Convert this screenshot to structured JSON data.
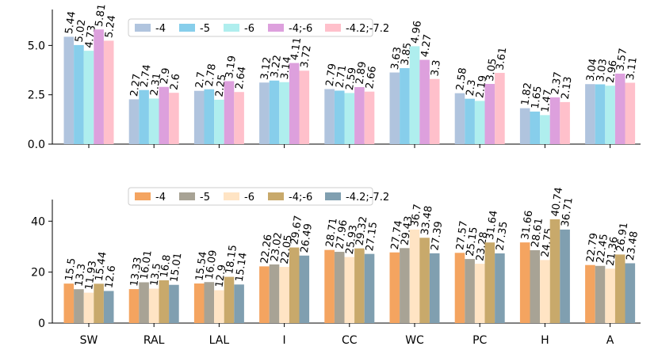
{
  "chart_data": [
    {
      "type": "bar",
      "categories": [
        "SW",
        "RAL",
        "LAL",
        "I",
        "CC",
        "WC",
        "PC",
        "H",
        "A"
      ],
      "ylim": [
        0,
        6.5
      ],
      "yticks": [
        "0.0",
        "2.5",
        "5.0"
      ],
      "ytick_values": [
        0,
        2.5,
        5.0
      ],
      "series": [
        {
          "name": "-4",
          "color": "#b0c4de",
          "values": [
            5.44,
            2.27,
            2.7,
            3.12,
            2.79,
            3.63,
            2.58,
            1.82,
            3.04
          ],
          "labels": [
            "5.44",
            "2.27",
            "2.7",
            "3.12",
            "2.79",
            "3.63",
            "2.58",
            "1.82",
            "3.04"
          ]
        },
        {
          "name": "-5",
          "color": "#87ceeb",
          "values": [
            5.02,
            2.74,
            2.78,
            3.22,
            2.71,
            3.85,
            2.3,
            1.65,
            3.03
          ],
          "labels": [
            "5.02",
            "2.74",
            "2.78",
            "3.22",
            "2.71",
            "3.85",
            "2.3",
            "1.65",
            "3.03"
          ]
        },
        {
          "name": "-6",
          "color": "#afeeee",
          "values": [
            4.73,
            2.31,
            2.25,
            3.14,
            2.59,
            4.96,
            2.19,
            1.47,
            2.96
          ],
          "labels": [
            "4.73",
            "2.31",
            "2.25",
            "3.14",
            "2.59",
            "4.96",
            "2.19",
            "1.47",
            "2.96"
          ]
        },
        {
          "name": "-4;-6",
          "color": "#dda0dd",
          "values": [
            5.81,
            2.9,
            3.19,
            4.11,
            2.89,
            4.27,
            3.05,
            2.37,
            3.57
          ],
          "labels": [
            "5.81",
            "2.9",
            "3.19",
            "4.11",
            "2.89",
            "4.27",
            "3.05",
            "2.37",
            "3.57"
          ]
        },
        {
          "name": "-4.2;-7.2",
          "color": "#ffc0cb",
          "values": [
            5.24,
            2.6,
            2.64,
            3.72,
            2.66,
            3.3,
            3.61,
            2.13,
            3.11
          ],
          "labels": [
            "5.24",
            "2.6",
            "2.64",
            "3.72",
            "2.66",
            "3.3",
            "3.61",
            "2.13",
            "3.11"
          ]
        }
      ],
      "legend_position": "top-center"
    },
    {
      "type": "bar",
      "categories": [
        "SW",
        "RAL",
        "LAL",
        "I",
        "CC",
        "WC",
        "PC",
        "H",
        "A"
      ],
      "ylim": [
        0,
        46
      ],
      "yticks": [
        "0",
        "20",
        "40"
      ],
      "ytick_values": [
        0,
        20,
        40
      ],
      "series": [
        {
          "name": "-4",
          "color": "#f4a460",
          "values": [
            15.5,
            13.33,
            15.54,
            22.26,
            28.71,
            27.74,
            27.57,
            31.66,
            22.79
          ],
          "labels": [
            "15.5",
            "13.33",
            "15.54",
            "22.26",
            "28.71",
            "27.74",
            "27.57",
            "31.66",
            "22.79"
          ]
        },
        {
          "name": "-5",
          "color": "#a8a395",
          "values": [
            13.3,
            16.01,
            16.09,
            23.02,
            27.96,
            29.43,
            25.15,
            28.61,
            22.45
          ],
          "labels": [
            "13.3",
            "16.01",
            "16.09",
            "23.02",
            "27.96",
            "29.43",
            "25.15",
            "28.61",
            "22.45"
          ]
        },
        {
          "name": "-6",
          "color": "#ffe4c4",
          "values": [
            11.93,
            13.5,
            12.9,
            22.05,
            25.93,
            36.7,
            23.28,
            24.75,
            21.36
          ],
          "labels": [
            "11.93",
            "13.5",
            "12.9",
            "22.05",
            "25.93",
            "36.7",
            "23.28",
            "24.75",
            "21.36"
          ]
        },
        {
          "name": "-4;-6",
          "color": "#c8a96b",
          "values": [
            15.44,
            16.8,
            18.15,
            29.67,
            29.32,
            33.48,
            31.64,
            40.74,
            26.91
          ],
          "labels": [
            "15.44",
            "16.8",
            "18.15",
            "29.67",
            "29.32",
            "33.48",
            "31.64",
            "40.74",
            "26.91"
          ]
        },
        {
          "name": "-4.2;-7.2",
          "color": "#809fb0",
          "values": [
            12.6,
            15.01,
            15.14,
            26.49,
            27.15,
            27.39,
            27.35,
            36.71,
            23.48
          ],
          "labels": [
            "12.6",
            "15.01",
            "15.14",
            "26.49",
            "27.15",
            "27.39",
            "27.35",
            "36.71",
            "23.48"
          ]
        }
      ],
      "legend_position": "top-center"
    }
  ]
}
